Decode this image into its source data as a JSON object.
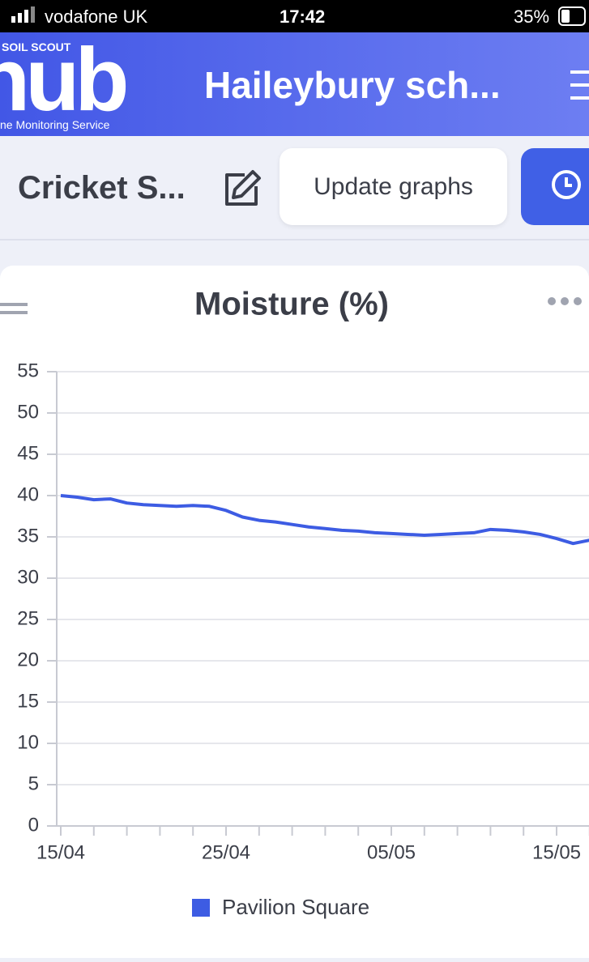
{
  "status_bar": {
    "carrier": "vodafone UK",
    "time": "17:42",
    "battery": "35%"
  },
  "header": {
    "logo_top": "SOIL SCOUT",
    "logo": "hub",
    "logo_sub": "ne Monitoring Service",
    "title": "Haileybury sch..."
  },
  "toolbar": {
    "title": "Cricket S...",
    "button": "Update graphs"
  },
  "chart_data": {
    "type": "line",
    "title": "Moisture (%)",
    "categories": [
      "15/04",
      null,
      null,
      null,
      null,
      null,
      null,
      null,
      null,
      null,
      "25/04",
      null,
      null,
      null,
      null,
      null,
      null,
      null,
      null,
      null,
      "05/05",
      null,
      null,
      null,
      null,
      null,
      null,
      null,
      null,
      null,
      "15/05",
      null,
      null
    ],
    "series": [
      {
        "name": "Pavilion Square",
        "color": "#3d5ce3",
        "values": [
          40,
          39.8,
          39.5,
          39.6,
          39.1,
          38.9,
          38.8,
          38.7,
          38.8,
          38.7,
          38.2,
          37.4,
          37.0,
          36.8,
          36.5,
          36.2,
          36.0,
          35.8,
          35.7,
          35.5,
          35.4,
          35.3,
          35.2,
          35.3,
          35.4,
          35.5,
          35.9,
          35.8,
          35.6,
          35.3,
          34.8,
          34.2,
          34.6
        ]
      }
    ],
    "ylim": [
      0,
      55
    ],
    "yticks": [
      0,
      5,
      10,
      15,
      20,
      25,
      30,
      35,
      40,
      45,
      50,
      55
    ],
    "grid": true,
    "legend": "bottom"
  }
}
